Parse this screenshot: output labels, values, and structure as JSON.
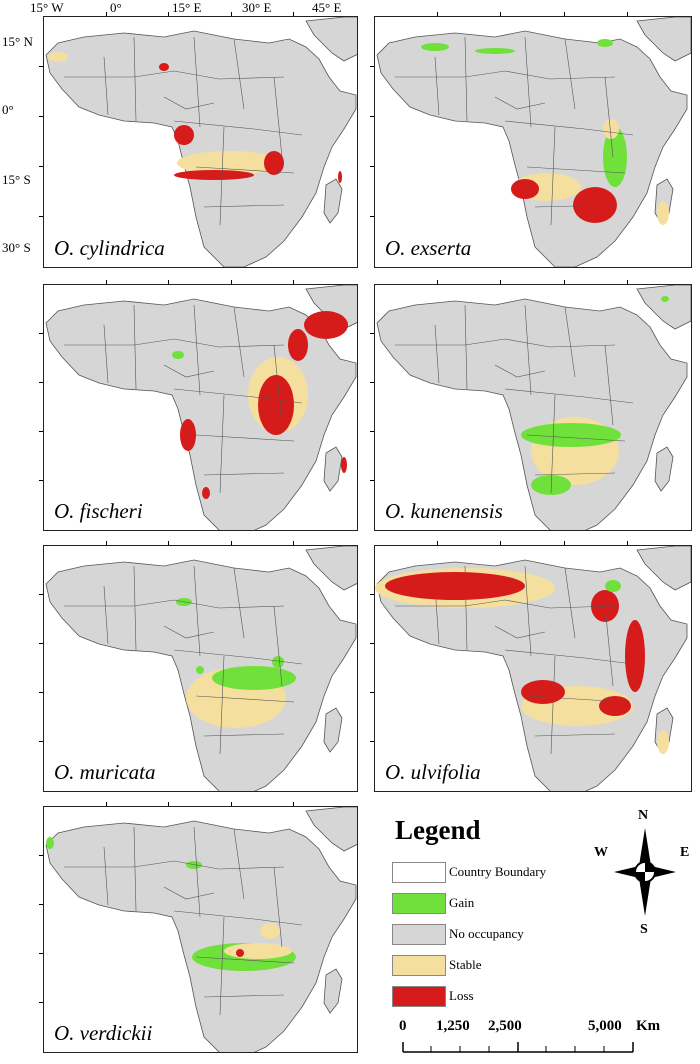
{
  "axes": {
    "longitude_labels": [
      "15° W",
      "0°",
      "15° E",
      "30° E",
      "45° E"
    ],
    "latitude_labels": [
      "15° N",
      "0°",
      "15° S",
      "30° S"
    ]
  },
  "panels": [
    {
      "species": "O. cylindrica"
    },
    {
      "species": "O. exserta"
    },
    {
      "species": "O. fischeri"
    },
    {
      "species": "O. kunenensis"
    },
    {
      "species": "O. muricata"
    },
    {
      "species": "O. ulvifolia"
    },
    {
      "species": "O. verdickii"
    }
  ],
  "legend": {
    "title": "Legend",
    "items": [
      {
        "label": "Country Boundary",
        "color": "#ffffff"
      },
      {
        "label": "Gain",
        "color": "#6fe13a"
      },
      {
        "label": "No occupancy",
        "color": "#d6d6d6"
      },
      {
        "label": "Stable",
        "color": "#f5df9f"
      },
      {
        "label": "Loss",
        "color": "#d61b1b"
      }
    ]
  },
  "scale_bar": {
    "labels": [
      "0",
      "1,250",
      "2,500",
      "5,000"
    ],
    "unit": "Km"
  },
  "compass": {
    "north": "N",
    "south": "S",
    "east": "E",
    "west": "W"
  },
  "colors": {
    "land": "#d6d6d6",
    "ocean": "#ffffff",
    "border": "#555555"
  }
}
